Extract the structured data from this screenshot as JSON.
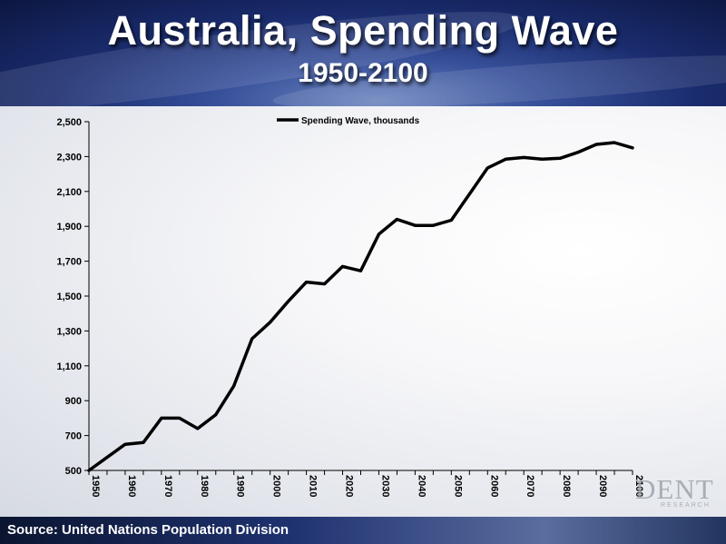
{
  "header": {
    "title": "Australia, Spending Wave",
    "subtitle": "1950-2100"
  },
  "footer": {
    "source": "Source: United Nations Population Division"
  },
  "logo": {
    "text": "DENT",
    "subtext": "RESEARCH"
  },
  "chart_data": {
    "type": "line",
    "title": "Australia, Spending Wave",
    "subtitle": "1950-2100",
    "xlabel": "",
    "ylabel": "",
    "xlim": [
      1950,
      2100
    ],
    "ylim": [
      500,
      2500
    ],
    "yticks": [
      500,
      700,
      900,
      1100,
      1300,
      1500,
      1700,
      1900,
      2100,
      2300,
      2500
    ],
    "ytick_labels": [
      "500",
      "700",
      "900",
      "1,100",
      "1,300",
      "1,500",
      "1,700",
      "1,900",
      "2,100",
      "2,300",
      "2,500"
    ],
    "xticks": [
      1950,
      1960,
      1970,
      1980,
      1990,
      2000,
      2010,
      2020,
      2030,
      2040,
      2050,
      2060,
      2070,
      2080,
      2090,
      2100
    ],
    "xtick_labels": [
      "1950",
      "1960",
      "1970",
      "1980",
      "1990",
      "2000",
      "2010",
      "2020",
      "2030",
      "2040",
      "2050",
      "2060",
      "2070",
      "2080",
      "2090",
      "2100"
    ],
    "grid": false,
    "legend_position": "top-center",
    "line_color": "#000000",
    "series": [
      {
        "name": "Spending Wave, thousands",
        "x": [
          1950,
          1955,
          1960,
          1965,
          1970,
          1975,
          1980,
          1985,
          1990,
          1995,
          2000,
          2005,
          2010,
          2015,
          2020,
          2025,
          2030,
          2035,
          2040,
          2045,
          2050,
          2055,
          2060,
          2065,
          2070,
          2075,
          2080,
          2085,
          2090,
          2095,
          2100
        ],
        "values": [
          500,
          575,
          650,
          660,
          800,
          800,
          740,
          820,
          985,
          1255,
          1350,
          1470,
          1580,
          1570,
          1670,
          1645,
          1855,
          1940,
          1905,
          1905,
          1935,
          2085,
          2235,
          2285,
          2295,
          2285,
          2290,
          2325,
          2370,
          2380,
          2350
        ]
      }
    ]
  }
}
